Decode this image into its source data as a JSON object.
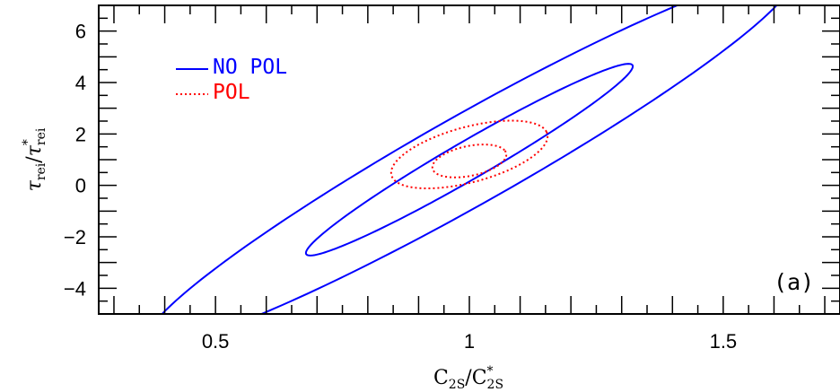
{
  "chart_data": {
    "type": "line",
    "title": "",
    "xlabel": "C_2S/C*_2S",
    "ylabel": "τ_rei/τ*_rei",
    "xlim": [
      0.27,
      1.73
    ],
    "ylim": [
      -5,
      7
    ],
    "xticks": [
      0.5,
      1,
      1.5
    ],
    "xtick_labels": [
      "0.5",
      "1",
      "1.5"
    ],
    "yticks": [
      -4,
      -2,
      0,
      2,
      4,
      6
    ],
    "ytick_labels": [
      "−4",
      "−2",
      "0",
      "2",
      "4",
      "6"
    ],
    "grid": false,
    "legend_position": "top-left",
    "annotation": "(a)",
    "series": [
      {
        "name": "NO POL",
        "color": "#0000ff",
        "dash": "solid",
        "contours": [
          {
            "level": "inner",
            "center": [
              1.0,
              1.0
            ],
            "semi_major": [
              0.32,
              3.7
            ],
            "semi_minor": [
              0.035,
              -0.45
            ]
          },
          {
            "level": "outer",
            "center": [
              1.0,
              1.0
            ],
            "semi_major": [
              0.63,
              7.15
            ],
            "semi_minor": [
              0.085,
              -1.05
            ]
          }
        ]
      },
      {
        "name": "POL",
        "color": "#ff0000",
        "dash": "dotted",
        "contours": [
          {
            "level": "inner",
            "center": [
              1.0,
              0.95
            ],
            "semi_major": [
              0.07,
              0.4
            ],
            "semi_minor": [
              0.02,
              -0.5
            ]
          },
          {
            "level": "outer",
            "center": [
              1.0,
              1.2
            ],
            "semi_major": [
              0.152,
              0.88
            ],
            "semi_minor": [
              0.025,
              -0.98
            ]
          }
        ]
      }
    ]
  }
}
